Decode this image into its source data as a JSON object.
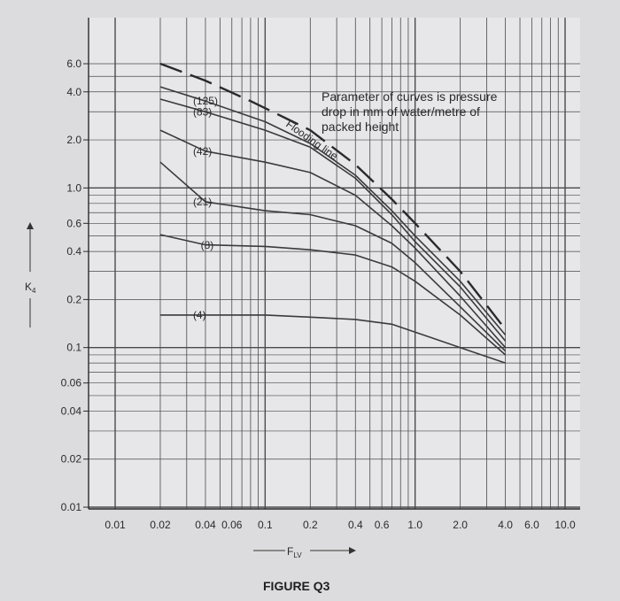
{
  "figure_caption": "FIGURE Q3",
  "chart_data": {
    "type": "line",
    "title": "",
    "xlabel": "F",
    "xlabel_sub": "LV",
    "ylabel": "K",
    "ylabel_sub": "4",
    "xscale": "log",
    "yscale": "log",
    "xlim": [
      0.01,
      10.0
    ],
    "ylim": [
      0.01,
      6.0
    ],
    "grid": true,
    "x_ticks": [
      {
        "v": 0.01,
        "label": "0.01"
      },
      {
        "v": 0.02,
        "label": "0.02"
      },
      {
        "v": 0.04,
        "label": "0.04"
      },
      {
        "v": 0.06,
        "label": "0.06"
      },
      {
        "v": 0.1,
        "label": "0.1"
      },
      {
        "v": 0.2,
        "label": "0.2"
      },
      {
        "v": 0.4,
        "label": "0.4"
      },
      {
        "v": 0.6,
        "label": "0.6"
      },
      {
        "v": 1.0,
        "label": "1.0"
      },
      {
        "v": 2.0,
        "label": "2.0"
      },
      {
        "v": 4.0,
        "label": "4.0"
      },
      {
        "v": 6.0,
        "label": "6.0"
      },
      {
        "v": 10.0,
        "label": "10.0"
      }
    ],
    "y_ticks": [
      {
        "v": 6.0,
        "label": "6.0"
      },
      {
        "v": 4.0,
        "label": "4.0"
      },
      {
        "v": 2.0,
        "label": "2.0"
      },
      {
        "v": 1.0,
        "label": "1.0"
      },
      {
        "v": 0.6,
        "label": "0.6"
      },
      {
        "v": 0.4,
        "label": "0.4"
      },
      {
        "v": 0.2,
        "label": "0.2"
      },
      {
        "v": 0.1,
        "label": "0.1"
      },
      {
        "v": 0.06,
        "label": "0.06"
      },
      {
        "v": 0.04,
        "label": "0.04"
      },
      {
        "v": 0.02,
        "label": "0.02"
      },
      {
        "v": 0.01,
        "label": "0.01"
      }
    ],
    "annotation": "Parameter of curves is pressure drop in mm of water/metre of packed height",
    "flooding_label": "Flooding line",
    "flooding_line": {
      "points": [
        [
          0.02,
          6.0
        ],
        [
          0.04,
          4.7
        ],
        [
          0.08,
          3.5
        ],
        [
          0.2,
          2.3
        ],
        [
          0.4,
          1.4
        ],
        [
          0.7,
          0.85
        ],
        [
          1.0,
          0.6
        ],
        [
          2.0,
          0.3
        ],
        [
          4.0,
          0.13
        ]
      ]
    },
    "series": [
      {
        "name": "(125)",
        "points": [
          [
            0.02,
            4.3
          ],
          [
            0.04,
            3.5
          ],
          [
            0.1,
            2.6
          ],
          [
            0.2,
            1.9
          ],
          [
            0.4,
            1.2
          ],
          [
            0.7,
            0.72
          ],
          [
            1.0,
            0.5
          ],
          [
            2.0,
            0.26
          ],
          [
            4.0,
            0.12
          ]
        ]
      },
      {
        "name": "(83)",
        "points": [
          [
            0.02,
            3.6
          ],
          [
            0.04,
            3.0
          ],
          [
            0.1,
            2.3
          ],
          [
            0.2,
            1.8
          ],
          [
            0.4,
            1.15
          ],
          [
            0.7,
            0.68
          ],
          [
            1.0,
            0.46
          ],
          [
            2.0,
            0.24
          ],
          [
            4.0,
            0.11
          ]
        ]
      },
      {
        "name": "(42)",
        "points": [
          [
            0.02,
            2.3
          ],
          [
            0.04,
            1.7
          ],
          [
            0.1,
            1.45
          ],
          [
            0.2,
            1.25
          ],
          [
            0.4,
            0.9
          ],
          [
            0.7,
            0.58
          ],
          [
            1.0,
            0.42
          ],
          [
            2.0,
            0.21
          ],
          [
            4.0,
            0.1
          ]
        ]
      },
      {
        "name": "(21)",
        "points": [
          [
            0.02,
            1.45
          ],
          [
            0.04,
            0.82
          ],
          [
            0.1,
            0.72
          ],
          [
            0.2,
            0.68
          ],
          [
            0.4,
            0.58
          ],
          [
            0.7,
            0.45
          ],
          [
            1.0,
            0.34
          ],
          [
            2.0,
            0.18
          ],
          [
            4.0,
            0.095
          ]
        ]
      },
      {
        "name": "(8)",
        "points": [
          [
            0.02,
            0.51
          ],
          [
            0.04,
            0.44
          ],
          [
            0.1,
            0.43
          ],
          [
            0.2,
            0.41
          ],
          [
            0.4,
            0.38
          ],
          [
            0.7,
            0.32
          ],
          [
            1.0,
            0.26
          ],
          [
            2.0,
            0.16
          ],
          [
            4.0,
            0.09
          ]
        ]
      },
      {
        "name": "(4)",
        "points": [
          [
            0.02,
            0.16
          ],
          [
            0.04,
            0.16
          ],
          [
            0.1,
            0.16
          ],
          [
            0.2,
            0.155
          ],
          [
            0.4,
            0.15
          ],
          [
            0.7,
            0.14
          ],
          [
            1.0,
            0.125
          ],
          [
            2.0,
            0.1
          ],
          [
            4.0,
            0.08
          ]
        ]
      }
    ],
    "series_label_x": [
      0.04,
      0.04,
      0.04,
      0.04,
      0.045,
      0.04
    ]
  }
}
